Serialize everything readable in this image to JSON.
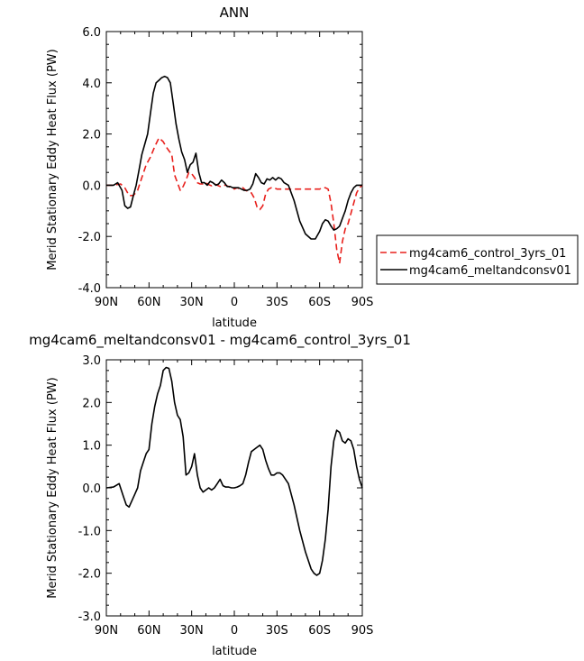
{
  "chart_data": [
    {
      "type": "line",
      "title": "ANN",
      "xlabel": "latitude",
      "ylabel": "Merid Stationary Eddy Heat Flux (PW)",
      "xlim": [
        90,
        -90
      ],
      "ylim": [
        -4.0,
        6.0
      ],
      "x_ticks": [
        {
          "v": 90,
          "label": "90N"
        },
        {
          "v": 60,
          "label": "60N"
        },
        {
          "v": 30,
          "label": "30N"
        },
        {
          "v": 0,
          "label": "0"
        },
        {
          "v": -30,
          "label": "30S"
        },
        {
          "v": -60,
          "label": "60S"
        },
        {
          "v": -90,
          "label": "90S"
        }
      ],
      "y_ticks": [
        {
          "v": 6.0,
          "label": "6.0"
        },
        {
          "v": 4.0,
          "label": "4.0"
        },
        {
          "v": 2.0,
          "label": "2.0"
        },
        {
          "v": 0.0,
          "label": "0.0"
        },
        {
          "v": -2.0,
          "label": "-2.0"
        },
        {
          "v": -4.0,
          "label": "-4.0"
        }
      ],
      "legend_position": "right",
      "series": [
        {
          "name": "mg4cam6_control_3yrs_01",
          "color": "#e8201c",
          "dash": "dashed",
          "x": [
            90,
            85,
            80,
            77,
            74,
            71,
            68,
            65,
            62,
            59,
            56,
            53,
            50,
            48,
            46,
            44,
            42,
            40,
            38,
            36,
            34,
            32,
            30,
            28,
            26,
            24,
            22,
            20,
            18,
            16,
            14,
            12,
            10,
            8,
            6,
            4,
            2,
            0,
            -2,
            -4,
            -6,
            -8,
            -10,
            -12,
            -14,
            -16,
            -18,
            -20,
            -22,
            -24,
            -26,
            -28,
            -30,
            -34,
            -38,
            -42,
            -46,
            -50,
            -54,
            -58,
            -60,
            -62,
            -64,
            -66,
            -68,
            -70,
            -72,
            -74,
            -76,
            -78,
            -80,
            -82,
            -84,
            -86,
            -88,
            -90
          ],
          "y": [
            0.0,
            0.0,
            0.05,
            -0.1,
            -0.4,
            -0.4,
            -0.2,
            0.3,
            0.8,
            1.1,
            1.5,
            1.85,
            1.7,
            1.5,
            1.35,
            1.2,
            0.4,
            0.1,
            -0.2,
            -0.05,
            0.2,
            0.5,
            0.45,
            0.3,
            0.1,
            0.05,
            0.05,
            0.1,
            0.02,
            -0.02,
            0.05,
            0.0,
            -0.05,
            0.0,
            0.0,
            -0.05,
            -0.1,
            -0.15,
            -0.1,
            -0.15,
            -0.1,
            -0.2,
            -0.25,
            -0.3,
            -0.5,
            -0.85,
            -0.95,
            -0.8,
            -0.35,
            -0.15,
            -0.1,
            -0.1,
            -0.15,
            -0.15,
            -0.15,
            -0.15,
            -0.15,
            -0.15,
            -0.15,
            -0.15,
            -0.15,
            -0.1,
            -0.1,
            -0.15,
            -0.7,
            -1.5,
            -2.5,
            -3.05,
            -2.2,
            -1.7,
            -1.5,
            -1.1,
            -0.7,
            -0.3,
            -0.1,
            0.0
          ]
        },
        {
          "name": "mg4cam6_meltandconsv01",
          "color": "#000000",
          "dash": "solid",
          "x": [
            90,
            85,
            82,
            79,
            77,
            75,
            73,
            71,
            69,
            67,
            65,
            63,
            61,
            59,
            57,
            55,
            53,
            51,
            49,
            47,
            45,
            43,
            41,
            39,
            37,
            35,
            33,
            31,
            29,
            27,
            25,
            23,
            21,
            19,
            17,
            15,
            13,
            11,
            9,
            7,
            5,
            3,
            1,
            -1,
            -3,
            -5,
            -7,
            -9,
            -11,
            -13,
            -15,
            -17,
            -19,
            -21,
            -23,
            -25,
            -27,
            -29,
            -31,
            -33,
            -35,
            -38,
            -42,
            -46,
            -50,
            -54,
            -57,
            -60,
            -62,
            -64,
            -66,
            -68,
            -70,
            -72,
            -74,
            -76,
            -78,
            -80,
            -82,
            -84,
            -86,
            -88,
            -90
          ],
          "y": [
            0.0,
            0.0,
            0.1,
            -0.2,
            -0.8,
            -0.9,
            -0.85,
            -0.4,
            0.0,
            0.6,
            1.2,
            1.6,
            2.0,
            2.8,
            3.6,
            4.0,
            4.1,
            4.2,
            4.25,
            4.2,
            4.0,
            3.2,
            2.4,
            1.8,
            1.3,
            1.0,
            0.5,
            0.8,
            0.9,
            1.25,
            0.5,
            0.1,
            0.1,
            0.0,
            0.15,
            0.1,
            0.0,
            0.05,
            0.2,
            0.1,
            -0.05,
            -0.05,
            -0.1,
            -0.1,
            -0.1,
            -0.15,
            -0.2,
            -0.2,
            -0.15,
            0.05,
            0.45,
            0.3,
            0.1,
            0.05,
            0.25,
            0.2,
            0.3,
            0.2,
            0.3,
            0.25,
            0.1,
            0.0,
            -0.6,
            -1.4,
            -1.9,
            -2.1,
            -2.1,
            -1.8,
            -1.5,
            -1.35,
            -1.4,
            -1.6,
            -1.75,
            -1.7,
            -1.6,
            -1.3,
            -1.0,
            -0.6,
            -0.3,
            -0.1,
            0.0,
            0.0,
            0.0
          ]
        }
      ]
    },
    {
      "type": "line",
      "title": "mg4cam6_meltandconsv01 - mg4cam6_control_3yrs_01",
      "xlabel": "latitude",
      "ylabel": "Merid Stationary Eddy Heat Flux (PW)",
      "xlim": [
        90,
        -90
      ],
      "ylim": [
        -3.0,
        3.0
      ],
      "x_ticks": [
        {
          "v": 90,
          "label": "90N"
        },
        {
          "v": 60,
          "label": "60N"
        },
        {
          "v": 30,
          "label": "30N"
        },
        {
          "v": 0,
          "label": "0"
        },
        {
          "v": -30,
          "label": "30S"
        },
        {
          "v": -60,
          "label": "60S"
        },
        {
          "v": -90,
          "label": "90S"
        }
      ],
      "y_ticks": [
        {
          "v": 3.0,
          "label": "3.0"
        },
        {
          "v": 2.0,
          "label": "2.0"
        },
        {
          "v": 1.0,
          "label": "1.0"
        },
        {
          "v": 0.0,
          "label": "0.0"
        },
        {
          "v": -1.0,
          "label": "-1.0"
        },
        {
          "v": -2.0,
          "label": "-2.0"
        },
        {
          "v": -3.0,
          "label": "-3.0"
        }
      ],
      "series": [
        {
          "color": "#000000",
          "dash": "solid",
          "x": [
            90,
            85,
            81,
            78,
            76,
            74,
            72,
            70,
            68,
            66,
            64,
            62,
            60,
            58,
            56,
            54,
            52,
            50,
            48,
            46,
            44,
            42,
            40,
            38,
            36,
            34,
            32,
            30,
            28,
            26,
            24,
            22,
            20,
            18,
            16,
            14,
            12,
            10,
            8,
            6,
            4,
            2,
            0,
            -2,
            -4,
            -6,
            -8,
            -10,
            -12,
            -14,
            -16,
            -18,
            -20,
            -22,
            -24,
            -26,
            -28,
            -30,
            -32,
            -34,
            -38,
            -42,
            -46,
            -50,
            -54,
            -56,
            -58,
            -60,
            -62,
            -64,
            -66,
            -68,
            -70,
            -72,
            -74,
            -76,
            -78,
            -80,
            -82,
            -84,
            -86,
            -88,
            -90
          ],
          "y": [
            0.0,
            0.02,
            0.1,
            -0.2,
            -0.4,
            -0.45,
            -0.3,
            -0.15,
            0.0,
            0.4,
            0.6,
            0.8,
            0.9,
            1.5,
            1.9,
            2.2,
            2.4,
            2.75,
            2.82,
            2.8,
            2.5,
            2.0,
            1.7,
            1.6,
            1.2,
            0.3,
            0.35,
            0.5,
            0.8,
            0.3,
            0.0,
            -0.1,
            -0.05,
            0.0,
            -0.05,
            0.0,
            0.1,
            0.2,
            0.05,
            0.02,
            0.02,
            0.0,
            0.0,
            0.02,
            0.05,
            0.1,
            0.3,
            0.6,
            0.85,
            0.9,
            0.95,
            1.0,
            0.9,
            0.65,
            0.45,
            0.3,
            0.3,
            0.35,
            0.35,
            0.3,
            0.1,
            -0.4,
            -1.0,
            -1.5,
            -1.9,
            -2.0,
            -2.05,
            -2.0,
            -1.7,
            -1.2,
            -0.5,
            0.5,
            1.1,
            1.35,
            1.3,
            1.1,
            1.05,
            1.15,
            1.1,
            0.9,
            0.5,
            0.2,
            0.0
          ]
        }
      ]
    }
  ]
}
